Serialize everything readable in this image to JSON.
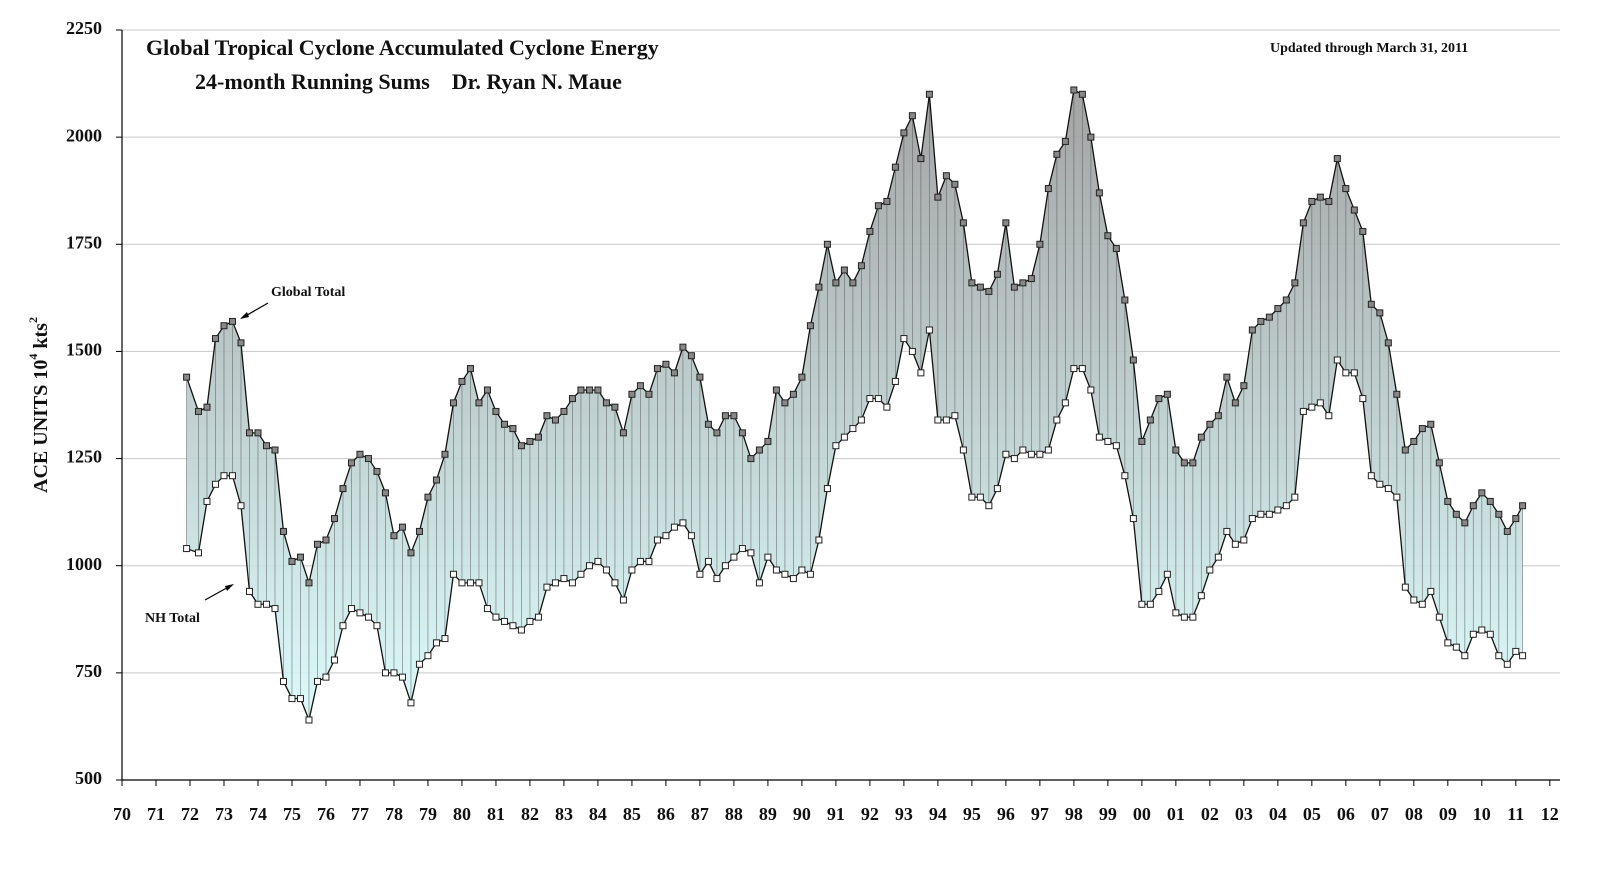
{
  "chart_data": {
    "type": "line",
    "title": "Global Tropical Cyclone Accumulated Cyclone Energy",
    "subtitle": "24-month Running Sums    Dr. Ryan N. Maue",
    "note": "Updated through March 31, 2011",
    "y_label": [
      "ACE UNITS 10",
      "4",
      " kts",
      "2"
    ],
    "xlim": [
      1970,
      2012.3
    ],
    "ylim": [
      500,
      2250
    ],
    "yticks": [
      500,
      750,
      1000,
      1250,
      1500,
      1750,
      2000,
      2250
    ],
    "xticks": [
      {
        "value": 1970,
        "label": "70"
      },
      {
        "value": 1971,
        "label": "71"
      },
      {
        "value": 1972,
        "label": "72"
      },
      {
        "value": 1973,
        "label": "73"
      },
      {
        "value": 1974,
        "label": "74"
      },
      {
        "value": 1975,
        "label": "75"
      },
      {
        "value": 1976,
        "label": "76"
      },
      {
        "value": 1977,
        "label": "77"
      },
      {
        "value": 1978,
        "label": "78"
      },
      {
        "value": 1979,
        "label": "79"
      },
      {
        "value": 1980,
        "label": "80"
      },
      {
        "value": 1981,
        "label": "81"
      },
      {
        "value": 1982,
        "label": "82"
      },
      {
        "value": 1983,
        "label": "83"
      },
      {
        "value": 1984,
        "label": "84"
      },
      {
        "value": 1985,
        "label": "85"
      },
      {
        "value": 1986,
        "label": "86"
      },
      {
        "value": 1987,
        "label": "87"
      },
      {
        "value": 1988,
        "label": "88"
      },
      {
        "value": 1989,
        "label": "89"
      },
      {
        "value": 1990,
        "label": "90"
      },
      {
        "value": 1991,
        "label": "91"
      },
      {
        "value": 1992,
        "label": "92"
      },
      {
        "value": 1993,
        "label": "93"
      },
      {
        "value": 1994,
        "label": "94"
      },
      {
        "value": 1995,
        "label": "95"
      },
      {
        "value": 1996,
        "label": "96"
      },
      {
        "value": 1997,
        "label": "97"
      },
      {
        "value": 1998,
        "label": "98"
      },
      {
        "value": 1999,
        "label": "99"
      },
      {
        "value": 2000,
        "label": "00"
      },
      {
        "value": 2001,
        "label": "01"
      },
      {
        "value": 2002,
        "label": "02"
      },
      {
        "value": 2003,
        "label": "03"
      },
      {
        "value": 2004,
        "label": "04"
      },
      {
        "value": 2005,
        "label": "05"
      },
      {
        "value": 2006,
        "label": "06"
      },
      {
        "value": 2007,
        "label": "07"
      },
      {
        "value": 2008,
        "label": "08"
      },
      {
        "value": 2009,
        "label": "09"
      },
      {
        "value": 2010,
        "label": "10"
      },
      {
        "value": 2011,
        "label": "11"
      },
      {
        "value": 2012,
        "label": "12"
      }
    ],
    "grid": true,
    "x": [
      1971.9,
      1972.25,
      1972.5,
      1972.75,
      1973,
      1973.25,
      1973.5,
      1973.75,
      1974,
      1974.25,
      1974.5,
      1974.75,
      1975,
      1975.25,
      1975.5,
      1975.75,
      1976,
      1976.25,
      1976.5,
      1976.75,
      1977,
      1977.25,
      1977.5,
      1977.75,
      1978,
      1978.25,
      1978.5,
      1978.75,
      1979,
      1979.25,
      1979.5,
      1979.75,
      1980,
      1980.25,
      1980.5,
      1980.75,
      1981,
      1981.25,
      1981.5,
      1981.75,
      1982,
      1982.25,
      1982.5,
      1982.75,
      1983,
      1983.25,
      1983.5,
      1983.75,
      1984,
      1984.25,
      1984.5,
      1984.75,
      1985,
      1985.25,
      1985.5,
      1985.75,
      1986,
      1986.25,
      1986.5,
      1986.75,
      1987,
      1987.25,
      1987.5,
      1987.75,
      1988,
      1988.25,
      1988.5,
      1988.75,
      1989,
      1989.25,
      1989.5,
      1989.75,
      1990,
      1990.25,
      1990.5,
      1990.75,
      1991,
      1991.25,
      1991.5,
      1991.75,
      1992,
      1992.25,
      1992.5,
      1992.75,
      1993,
      1993.25,
      1993.5,
      1993.75,
      1994,
      1994.25,
      1994.5,
      1994.75,
      1995,
      1995.25,
      1995.5,
      1995.75,
      1996,
      1996.25,
      1996.5,
      1996.75,
      1997,
      1997.25,
      1997.5,
      1997.75,
      1998,
      1998.25,
      1998.5,
      1998.75,
      1999,
      1999.25,
      1999.5,
      1999.75,
      2000,
      2000.25,
      2000.5,
      2000.75,
      2001,
      2001.25,
      2001.5,
      2001.75,
      2002,
      2002.25,
      2002.5,
      2002.75,
      2003,
      2003.25,
      2003.5,
      2003.75,
      2004,
      2004.25,
      2004.5,
      2004.75,
      2005,
      2005.25,
      2005.5,
      2005.75,
      2006,
      2006.25,
      2006.5,
      2006.75,
      2007,
      2007.25,
      2007.5,
      2007.75,
      2008,
      2008.25,
      2008.5,
      2008.75,
      2009,
      2009.25,
      2009.5,
      2009.75,
      2010,
      2010.25,
      2010.5,
      2010.75,
      2011,
      2011.2
    ],
    "series": [
      {
        "name": "Global Total",
        "color": "#888888",
        "values": [
          1440,
          1360,
          1370,
          1530,
          1560,
          1570,
          1520,
          1310,
          1310,
          1280,
          1270,
          1080,
          1010,
          1020,
          960,
          1050,
          1060,
          1110,
          1180,
          1240,
          1260,
          1250,
          1220,
          1170,
          1070,
          1090,
          1030,
          1080,
          1160,
          1200,
          1260,
          1380,
          1430,
          1460,
          1380,
          1410,
          1360,
          1330,
          1320,
          1280,
          1290,
          1300,
          1350,
          1340,
          1360,
          1390,
          1410,
          1410,
          1410,
          1380,
          1370,
          1310,
          1400,
          1420,
          1400,
          1460,
          1470,
          1450,
          1510,
          1490,
          1440,
          1330,
          1310,
          1350,
          1350,
          1310,
          1250,
          1270,
          1290,
          1410,
          1380,
          1400,
          1440,
          1560,
          1650,
          1750,
          1660,
          1690,
          1660,
          1700,
          1780,
          1840,
          1850,
          1930,
          2010,
          2050,
          1950,
          2100,
          1860,
          1910,
          1890,
          1800,
          1660,
          1650,
          1640,
          1680,
          1800,
          1650,
          1660,
          1670,
          1750,
          1880,
          1960,
          1990,
          2110,
          2100,
          2000,
          1870,
          1770,
          1740,
          1620,
          1480,
          1290,
          1340,
          1390,
          1400,
          1270,
          1240,
          1240,
          1300,
          1330,
          1350,
          1440,
          1380,
          1420,
          1550,
          1570,
          1580,
          1600,
          1620,
          1660,
          1800,
          1850,
          1860,
          1850,
          1950,
          1880,
          1830,
          1780,
          1610,
          1590,
          1520,
          1400,
          1270,
          1290,
          1320,
          1330,
          1240,
          1150,
          1120,
          1100,
          1140,
          1170,
          1150,
          1120,
          1080,
          1110,
          1140
        ]
      },
      {
        "name": "NH Total",
        "color": "#ffffff",
        "values": [
          1040,
          1030,
          1150,
          1190,
          1210,
          1210,
          1140,
          940,
          910,
          910,
          900,
          730,
          690,
          690,
          640,
          730,
          740,
          780,
          860,
          900,
          890,
          880,
          860,
          750,
          750,
          740,
          680,
          770,
          790,
          820,
          830,
          980,
          960,
          960,
          960,
          900,
          880,
          870,
          860,
          850,
          870,
          880,
          950,
          960,
          970,
          960,
          980,
          1000,
          1010,
          990,
          960,
          920,
          990,
          1010,
          1010,
          1060,
          1070,
          1090,
          1100,
          1070,
          980,
          1010,
          970,
          1000,
          1020,
          1040,
          1030,
          960,
          1020,
          990,
          980,
          970,
          990,
          980,
          1060,
          1180,
          1280,
          1300,
          1320,
          1340,
          1390,
          1390,
          1370,
          1430,
          1530,
          1500,
          1450,
          1550,
          1340,
          1340,
          1350,
          1270,
          1160,
          1160,
          1140,
          1180,
          1260,
          1250,
          1270,
          1260,
          1260,
          1270,
          1340,
          1380,
          1460,
          1460,
          1410,
          1300,
          1290,
          1280,
          1210,
          1110,
          910,
          910,
          940,
          980,
          890,
          880,
          880,
          930,
          990,
          1020,
          1080,
          1050,
          1060,
          1110,
          1120,
          1120,
          1130,
          1140,
          1160,
          1360,
          1370,
          1380,
          1350,
          1480,
          1450,
          1450,
          1390,
          1210,
          1190,
          1180,
          1160,
          950,
          920,
          910,
          940,
          880,
          820,
          810,
          790,
          840,
          850,
          840,
          790,
          770,
          800,
          790
        ]
      }
    ]
  }
}
